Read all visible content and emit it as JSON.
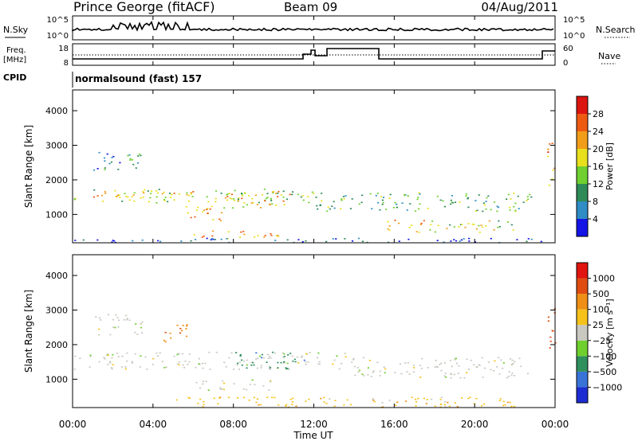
{
  "header": {
    "station": "Prince George (fitACF)",
    "beam": "Beam 09",
    "date": "04/Aug/2011"
  },
  "panels": {
    "nsky": {
      "left_label": "N.Sky",
      "left_ticks": [
        "10^5",
        "10^0"
      ],
      "right_ticks": [
        "10^5",
        "10^0"
      ],
      "right_label": "N.Search"
    },
    "freq": {
      "left_label_1": "Freq.",
      "left_label_2": "[MHz]",
      "left_ticks": [
        "18",
        "8"
      ],
      "right_ticks": [
        "60",
        "0"
      ],
      "right_label": "Nave"
    },
    "cpid": {
      "label": "CPID",
      "text": "normalsound (fast) 157"
    }
  },
  "colors": {
    "power_scale": [
      "#1414e6",
      "#2f8cc4",
      "#2e8a57",
      "#6fd02f",
      "#e8df1d",
      "#f19d1a",
      "#ee5a12",
      "#dc1410"
    ],
    "velocity_scale": [
      "#1c2bd2",
      "#3a73d8",
      "#2f8f5d",
      "#6fcf2d",
      "#c8c8c0",
      "#f6c21a",
      "#ef8f15",
      "#e04c10",
      "#e01410"
    ]
  },
  "chart_data": [
    {
      "type": "heatmap",
      "title": "",
      "xlabel": "Time UT",
      "ylabel": "Slant Range [km]",
      "x_ticks": [
        "00:00",
        "04:00",
        "08:00",
        "12:00",
        "16:00",
        "20:00",
        "00:00"
      ],
      "y_ticks": [
        "1000",
        "2000",
        "3000",
        "4000"
      ],
      "xlim": [
        0,
        24
      ],
      "ylim": [
        180,
        4600
      ],
      "colorbar": {
        "label": "Power [dB]",
        "ticks": [
          "28",
          "24",
          "20",
          "16",
          "12",
          "8",
          "4"
        ],
        "range": [
          0,
          30
        ]
      },
      "regions": [
        {
          "t0": 0.0,
          "t1": 12.0,
          "r0": 1350,
          "r1": 1750,
          "level": 0.45
        },
        {
          "t0": 1.0,
          "t1": 6.0,
          "r0": 1500,
          "r1": 1720,
          "level": 0.7
        },
        {
          "t0": 12.0,
          "t1": 22.8,
          "r0": 1100,
          "r1": 1650,
          "level": 0.35
        },
        {
          "t0": 1.0,
          "t1": 3.5,
          "r0": 2300,
          "r1": 2850,
          "level": 0.2
        },
        {
          "t0": 5.5,
          "t1": 7.5,
          "r0": 800,
          "r1": 1300,
          "level": 0.75
        },
        {
          "t0": 7.5,
          "t1": 11.0,
          "r0": 1200,
          "r1": 1700,
          "level": 0.65
        },
        {
          "t0": 15.5,
          "t1": 17.5,
          "r0": 500,
          "r1": 850,
          "level": 0.75
        },
        {
          "t0": 17.5,
          "t1": 22.0,
          "r0": 500,
          "r1": 850,
          "level": 0.5
        },
        {
          "t0": 6.0,
          "t1": 10.5,
          "r0": 300,
          "r1": 550,
          "level": 0.75
        },
        {
          "t0": 0.0,
          "t1": 24.0,
          "r0": 200,
          "r1": 330,
          "level": 0.08
        },
        {
          "t0": 23.6,
          "t1": 24.0,
          "r0": 1800,
          "r1": 3200,
          "level": 0.8
        }
      ]
    },
    {
      "type": "heatmap",
      "title": "",
      "xlabel": "Time UT",
      "ylabel": "Slant Range [km]",
      "x_ticks": [
        "00:00",
        "04:00",
        "08:00",
        "12:00",
        "16:00",
        "20:00",
        "00:00"
      ],
      "y_ticks": [
        "1000",
        "2000",
        "3000",
        "4000"
      ],
      "xlim": [
        0,
        24
      ],
      "ylim": [
        180,
        4600
      ],
      "colorbar": {
        "label": "Velocity [m s⁻¹]",
        "ticks": [
          "1000",
          "500",
          "100",
          "25",
          "−25",
          "−100",
          "−500",
          "−1000"
        ],
        "range": [
          -1000,
          1000
        ]
      },
      "regions": [
        {
          "t0": 0.0,
          "t1": 14.0,
          "r0": 1300,
          "r1": 1800,
          "level": 4
        },
        {
          "t0": 1.0,
          "t1": 3.5,
          "r0": 2300,
          "r1": 2900,
          "level": 4
        },
        {
          "t0": 14.0,
          "t1": 22.8,
          "r0": 1050,
          "r1": 1650,
          "level": 4
        },
        {
          "t0": 8.0,
          "t1": 11.5,
          "r0": 1300,
          "r1": 1800,
          "level": 2
        },
        {
          "t0": 4.5,
          "t1": 6.0,
          "r0": 2100,
          "r1": 2600,
          "level": 6
        },
        {
          "t0": 6.0,
          "t1": 10.0,
          "r0": 700,
          "r1": 1000,
          "level": 4
        },
        {
          "t0": 5.0,
          "t1": 22.0,
          "r0": 200,
          "r1": 500,
          "level": 5
        },
        {
          "t0": 23.6,
          "t1": 24.0,
          "r0": 1800,
          "r1": 3200,
          "level": 7
        }
      ]
    }
  ]
}
